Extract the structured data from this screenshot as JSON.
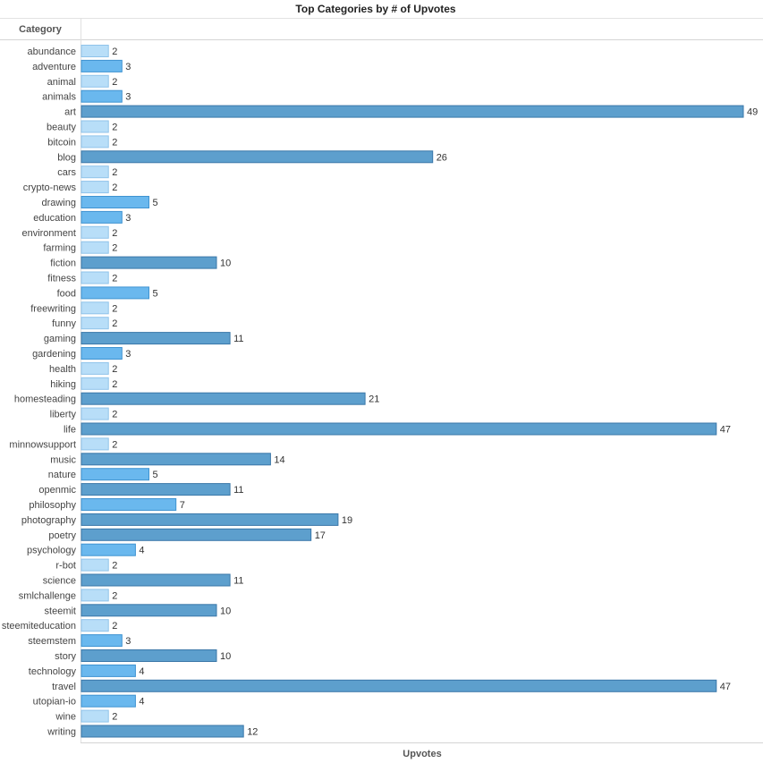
{
  "chart_data": {
    "type": "bar",
    "orientation": "horizontal",
    "title": "Top Categories by # of Upvotes",
    "row_header": "Category",
    "xlabel": "Upvotes",
    "xlim": [
      0,
      49
    ],
    "grid": false,
    "color_scale": [
      "#b8def8",
      "#6ab8ee",
      "#5d9fcd"
    ],
    "categories": [
      "abundance",
      "adventure",
      "animal",
      "animals",
      "art",
      "beauty",
      "bitcoin",
      "blog",
      "cars",
      "crypto-news",
      "drawing",
      "education",
      "environment",
      "farming",
      "fiction",
      "fitness",
      "food",
      "freewriting",
      "funny",
      "gaming",
      "gardening",
      "health",
      "hiking",
      "homesteading",
      "liberty",
      "life",
      "minnowsupport",
      "music",
      "nature",
      "openmic",
      "philosophy",
      "photography",
      "poetry",
      "psychology",
      "r-bot",
      "science",
      "smlchallenge",
      "steemit",
      "steemiteducation",
      "steemstem",
      "story",
      "technology",
      "travel",
      "utopian-io",
      "wine",
      "writing"
    ],
    "values": [
      2,
      3,
      2,
      3,
      49,
      2,
      2,
      26,
      2,
      2,
      5,
      3,
      2,
      2,
      10,
      2,
      5,
      2,
      2,
      11,
      3,
      2,
      2,
      21,
      2,
      47,
      2,
      14,
      5,
      11,
      7,
      19,
      17,
      4,
      2,
      11,
      2,
      10,
      2,
      3,
      10,
      4,
      47,
      4,
      2,
      12
    ]
  }
}
